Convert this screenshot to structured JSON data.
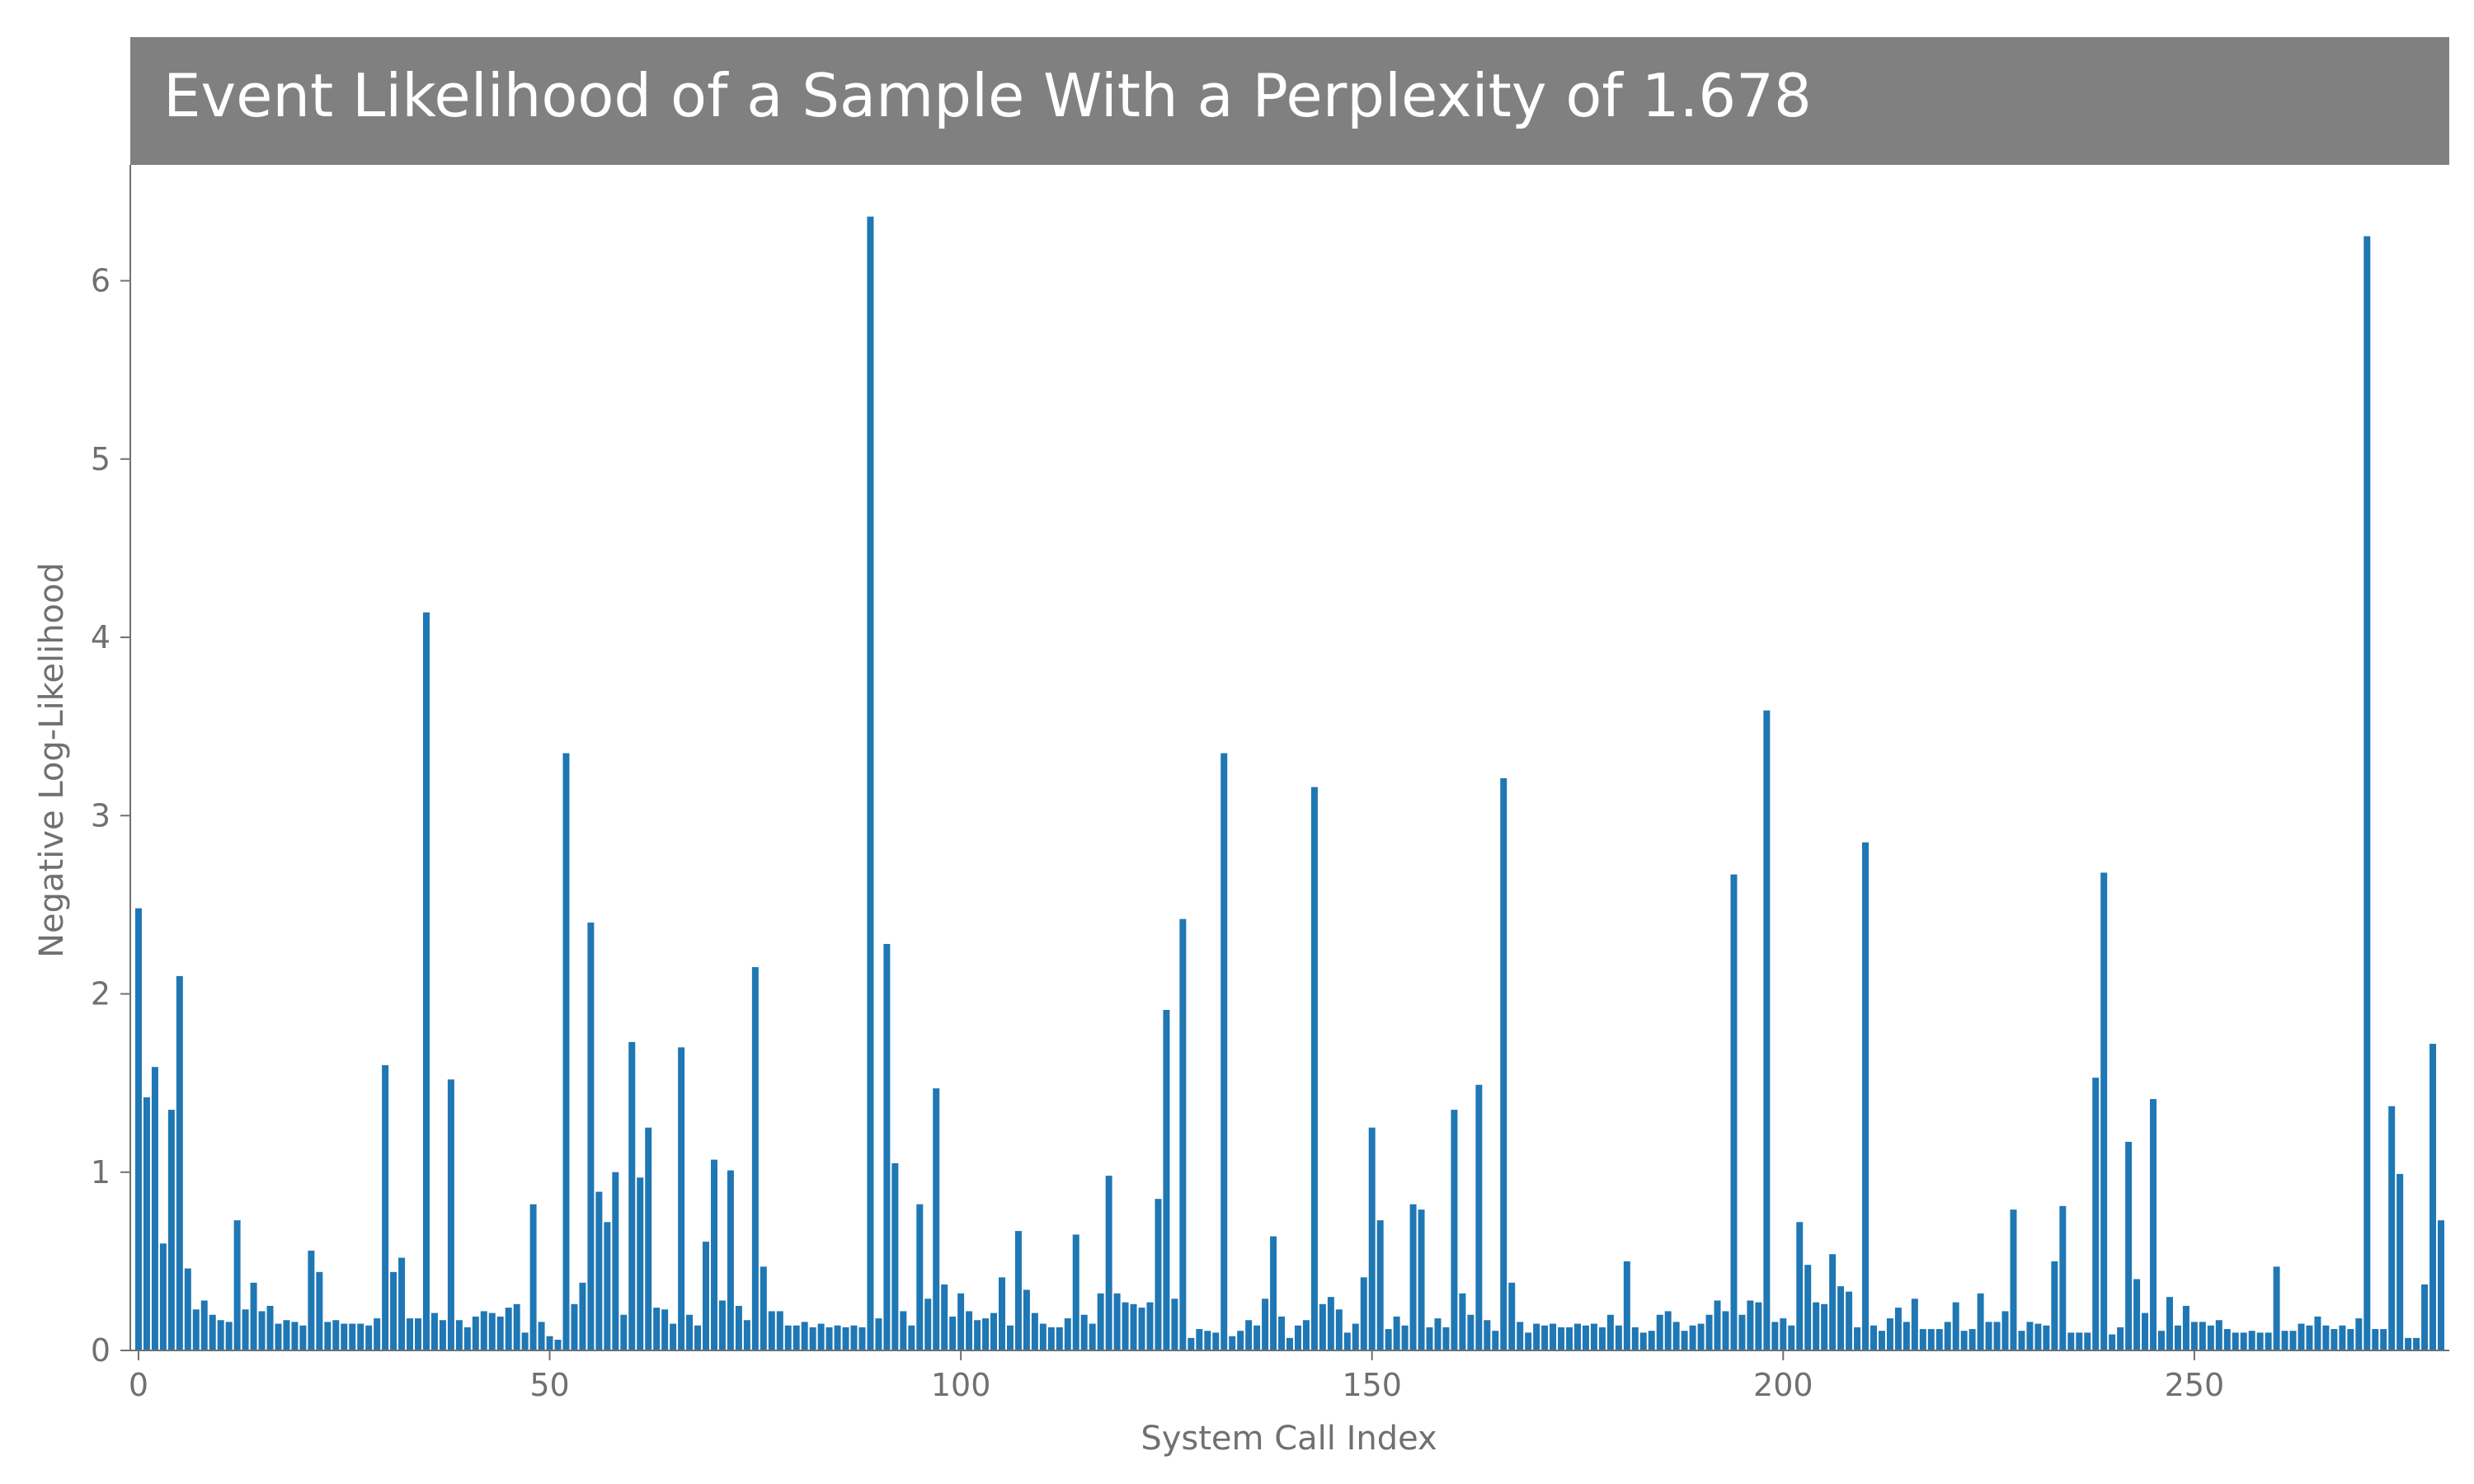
{
  "chart_data": {
    "type": "bar",
    "title": "Event Likelihood of a Sample With a Perplexity of 1.678",
    "xlabel": "System Call Index",
    "ylabel": "Negative Log-Likelihood",
    "xlim": [
      -1,
      281
    ],
    "ylim": [
      0,
      6.65
    ],
    "xticks": [
      0,
      50,
      100,
      150,
      200,
      250
    ],
    "yticks": [
      0,
      1,
      2,
      3,
      4,
      5,
      6
    ],
    "grid": false,
    "bar_color": "#1f77b4",
    "title_bg_color": "#808080",
    "x": [
      0,
      1,
      2,
      3,
      4,
      5,
      6,
      7,
      8,
      9,
      10,
      11,
      12,
      13,
      14,
      15,
      16,
      17,
      18,
      19,
      20,
      21,
      22,
      23,
      24,
      25,
      26,
      27,
      28,
      29,
      30,
      31,
      32,
      33,
      34,
      35,
      36,
      37,
      38,
      39,
      40,
      41,
      42,
      43,
      44,
      45,
      46,
      47,
      48,
      49,
      50,
      51,
      52,
      53,
      54,
      55,
      56,
      57,
      58,
      59,
      60,
      61,
      62,
      63,
      64,
      65,
      66,
      67,
      68,
      69,
      70,
      71,
      72,
      73,
      74,
      75,
      76,
      77,
      78,
      79,
      80,
      81,
      82,
      83,
      84,
      85,
      86,
      87,
      88,
      89,
      90,
      91,
      92,
      93,
      94,
      95,
      96,
      97,
      98,
      99,
      100,
      101,
      102,
      103,
      104,
      105,
      106,
      107,
      108,
      109,
      110,
      111,
      112,
      113,
      114,
      115,
      116,
      117,
      118,
      119,
      120,
      121,
      122,
      123,
      124,
      125,
      126,
      127,
      128,
      129,
      130,
      131,
      132,
      133,
      134,
      135,
      136,
      137,
      138,
      139,
      140,
      141,
      142,
      143,
      144,
      145,
      146,
      147,
      148,
      149,
      150,
      151,
      152,
      153,
      154,
      155,
      156,
      157,
      158,
      159,
      160,
      161,
      162,
      163,
      164,
      165,
      166,
      167,
      168,
      169,
      170,
      171,
      172,
      173,
      174,
      175,
      176,
      177,
      178,
      179,
      180,
      181,
      182,
      183,
      184,
      185,
      186,
      187,
      188,
      189,
      190,
      191,
      192,
      193,
      194,
      195,
      196,
      197,
      198,
      199,
      200,
      201,
      202,
      203,
      204,
      205,
      206,
      207,
      208,
      209,
      210,
      211,
      212,
      213,
      214,
      215,
      216,
      217,
      218,
      219,
      220,
      221,
      222,
      223,
      224,
      225,
      226,
      227,
      228,
      229,
      230,
      231,
      232,
      233,
      234,
      235,
      236,
      237,
      238,
      239,
      240,
      241,
      242,
      243,
      244,
      245,
      246,
      247,
      248,
      249,
      250,
      251,
      252,
      253,
      254,
      255,
      256,
      257,
      258,
      259,
      260,
      261,
      262,
      263,
      264,
      265,
      266,
      267,
      268,
      269,
      270,
      271,
      272,
      273,
      274,
      275,
      276,
      277,
      278,
      279,
      280
    ],
    "values": [
      2.48,
      1.42,
      1.59,
      0.6,
      1.35,
      2.1,
      0.46,
      0.23,
      0.28,
      0.2,
      0.17,
      0.16,
      0.73,
      0.23,
      0.38,
      0.22,
      0.25,
      0.15,
      0.17,
      0.16,
      0.14,
      0.56,
      0.44,
      0.16,
      0.17,
      0.15,
      0.15,
      0.15,
      0.14,
      0.18,
      1.6,
      0.44,
      0.52,
      0.18,
      0.18,
      4.14,
      0.21,
      0.17,
      1.52,
      0.17,
      0.13,
      0.19,
      0.22,
      0.21,
      0.19,
      0.24,
      0.26,
      0.1,
      0.82,
      0.16,
      0.08,
      0.06,
      3.35,
      0.26,
      0.38,
      2.4,
      0.89,
      0.72,
      1.0,
      0.2,
      1.73,
      0.97,
      1.25,
      0.24,
      0.23,
      0.15,
      1.7,
      0.2,
      0.14,
      0.61,
      1.07,
      0.28,
      1.01,
      0.25,
      0.17,
      2.15,
      0.47,
      0.22,
      0.22,
      0.14,
      0.14,
      0.16,
      0.13,
      0.15,
      0.13,
      0.14,
      0.13,
      0.14,
      0.13,
      6.36,
      0.18,
      2.28,
      1.05,
      0.22,
      0.14,
      0.82,
      0.29,
      1.47,
      0.37,
      0.19,
      0.32,
      0.22,
      0.17,
      0.18,
      0.21,
      0.41,
      0.14,
      0.67,
      0.34,
      0.21,
      0.15,
      0.13,
      0.13,
      0.18,
      0.65,
      0.2,
      0.15,
      0.32,
      0.98,
      0.32,
      0.27,
      0.26,
      0.24,
      0.27,
      0.85,
      1.91,
      0.29,
      2.42,
      0.07,
      0.12,
      0.11,
      0.1,
      3.35,
      0.08,
      0.11,
      0.17,
      0.14,
      0.29,
      0.64,
      0.19,
      0.07,
      0.14,
      0.17,
      3.16,
      0.26,
      0.3,
      0.23,
      0.1,
      0.15,
      0.41,
      1.25,
      0.73,
      0.12,
      0.19,
      0.14,
      0.82,
      0.79,
      0.13,
      0.18,
      0.13,
      1.35,
      0.32,
      0.2,
      1.49,
      0.17,
      0.11,
      3.21,
      0.38,
      0.16,
      0.1,
      0.15,
      0.14,
      0.15,
      0.13,
      0.13,
      0.15,
      0.14,
      0.15,
      0.13,
      0.2,
      0.14,
      0.5,
      0.13,
      0.1,
      0.11,
      0.2,
      0.22,
      0.16,
      0.11,
      0.14,
      0.15,
      0.2,
      0.28,
      0.22,
      2.67,
      0.2,
      0.28,
      0.27,
      3.59,
      0.16,
      0.18,
      0.14,
      0.72,
      0.48,
      0.27,
      0.26,
      0.54,
      0.36,
      0.33,
      0.13,
      2.85,
      0.14,
      0.11,
      0.18,
      0.24,
      0.16,
      0.29,
      0.12,
      0.12,
      0.12,
      0.16,
      0.27,
      0.11,
      0.12,
      0.32,
      0.16,
      0.16,
      0.22,
      0.79,
      0.11,
      0.16,
      0.15,
      0.14,
      0.5,
      0.81,
      0.1,
      0.1,
      0.1,
      1.53,
      2.68,
      0.09,
      0.13,
      1.17,
      0.4,
      0.21,
      1.41,
      0.11,
      0.3,
      0.14,
      0.25,
      0.16,
      0.16,
      0.14,
      0.17,
      0.12,
      0.1,
      0.1,
      0.11,
      0.1,
      0.1,
      0.47,
      0.11,
      0.11,
      0.15,
      0.14,
      0.19,
      0.14,
      0.12,
      0.14,
      0.12,
      0.18,
      6.25,
      0.12,
      0.12,
      1.37,
      0.99,
      0.07,
      0.07,
      0.37,
      1.72,
      0.73
    ]
  }
}
